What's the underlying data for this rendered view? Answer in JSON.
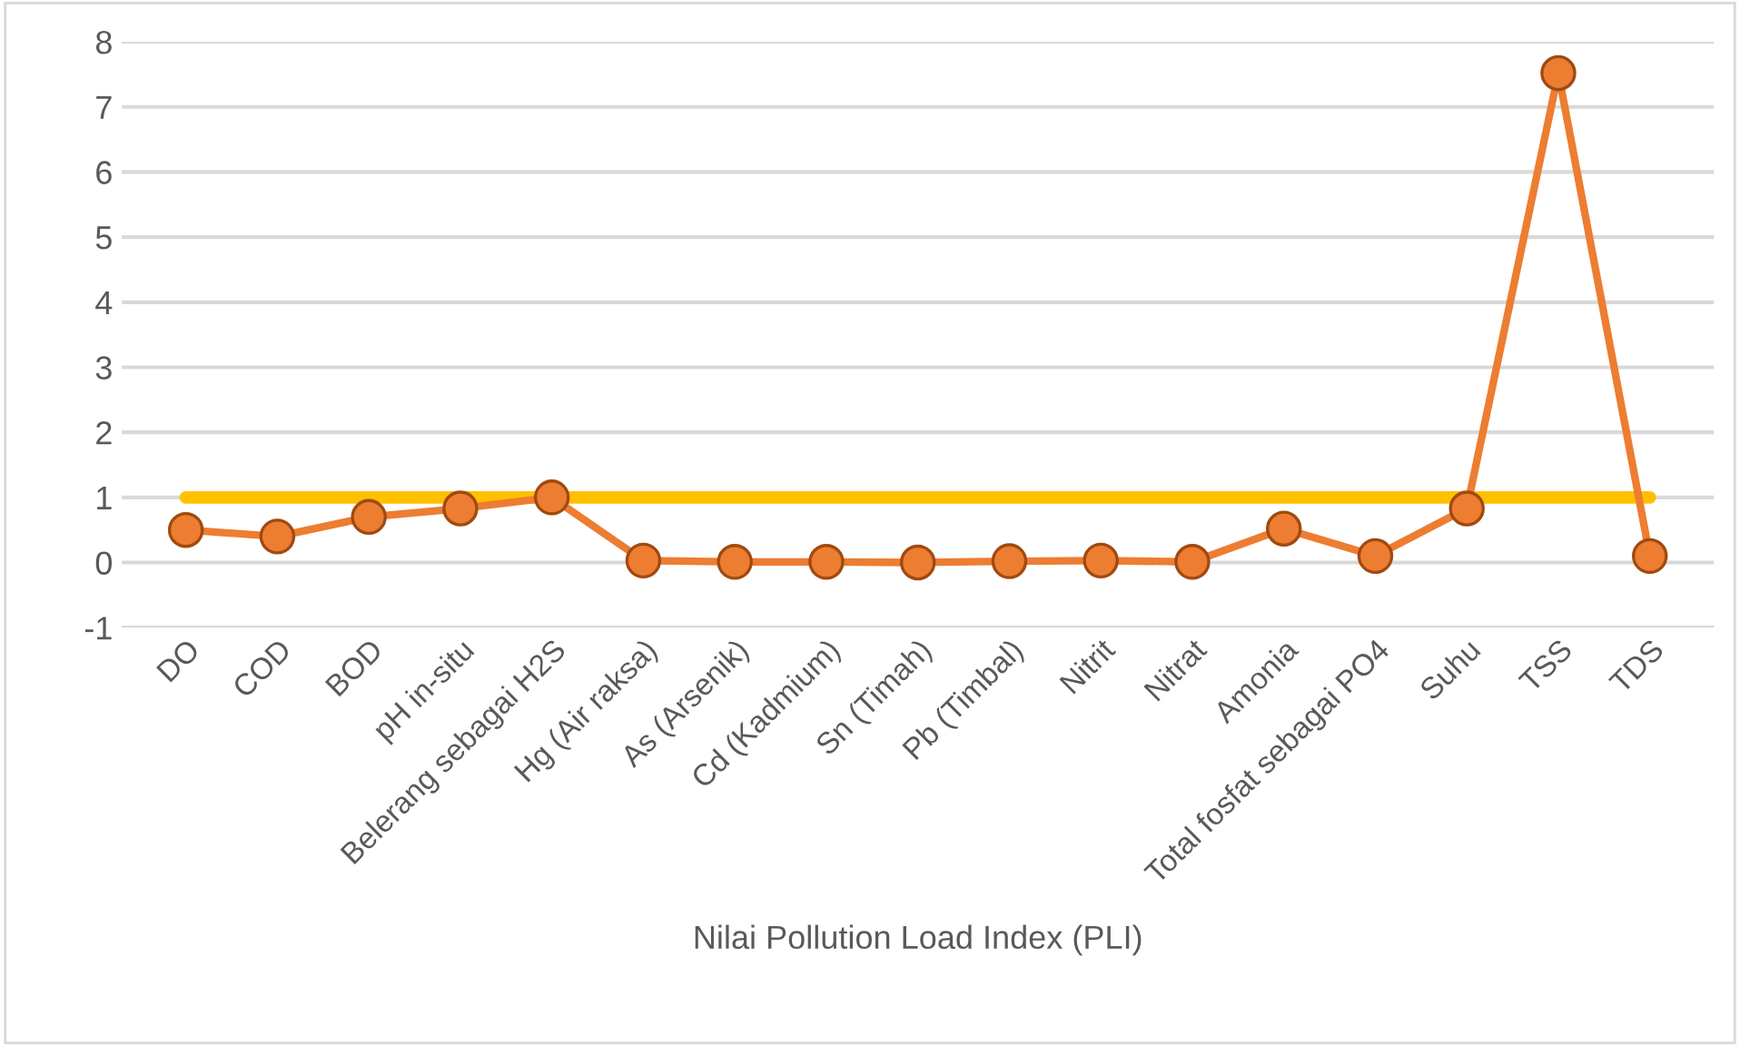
{
  "chart_data": {
    "type": "line",
    "xlabel": "Nilai Pollution Load Index (PLI)",
    "categories": [
      "DO",
      "COD",
      "BOD",
      "pH in-situ",
      "Belerang sebagai H2S",
      "Hg (Air raksa)",
      "As (Arsenik)",
      "Cd (Kadmium)",
      "Sn (Timah)",
      "Pb (Timbal)",
      "Nitrit",
      "Nitrat",
      "Amonia",
      "Total fosfat sebagai PO4",
      "Suhu",
      "TSS",
      "TDS"
    ],
    "series": [
      {
        "color": "#ed7d31",
        "marker": "circle",
        "values": [
          0.5,
          0.4,
          0.7,
          0.83,
          1.0,
          0.03,
          0.01,
          0.01,
          0.0,
          0.02,
          0.03,
          0.01,
          0.52,
          0.1,
          0.83,
          7.52,
          0.1
        ]
      },
      {
        "color": "#ffc000",
        "marker": "none",
        "values": [
          1,
          1,
          1,
          1,
          1,
          1,
          1,
          1,
          1,
          1,
          1,
          1,
          1,
          1,
          1,
          1,
          1
        ]
      }
    ],
    "ylim": [
      -1,
      8
    ],
    "yticks": [
      -1,
      0,
      1,
      2,
      3,
      4,
      5,
      6,
      7,
      8
    ],
    "grid": "y"
  }
}
